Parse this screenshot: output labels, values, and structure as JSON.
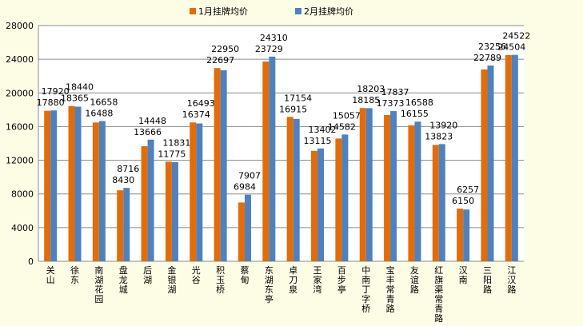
{
  "chart_data": {
    "type": "bar",
    "categories": [
      "关山",
      "徐东",
      "南湖花园",
      "盘龙城",
      "后湖",
      "金银湖",
      "光谷",
      "积玉桥",
      "蔡甸",
      "东湖东亭",
      "卓刀泉",
      "王家湾",
      "百步亭",
      "中南丁字桥",
      "宝丰常青路",
      "友谊路",
      "红旗渠常青路",
      "汉南",
      "三阳路",
      "江汉路"
    ],
    "series": [
      {
        "name": "1月挂牌均价",
        "color": "#e36c0a",
        "values": [
          17880,
          18440,
          16488,
          8430,
          13666,
          11831,
          16493,
          22950,
          6984,
          23729,
          17154,
          13115,
          14582,
          18203,
          17373,
          16155,
          13823,
          6257,
          22789,
          24504
        ]
      },
      {
        "name": "2月挂牌均价",
        "color": "#4f81bd",
        "values": [
          17920,
          18365,
          16658,
          8716,
          14448,
          11775,
          16374,
          22697,
          7907,
          24310,
          16915,
          13402,
          15057,
          18185,
          17837,
          16588,
          13920,
          6150,
          23256,
          24522
        ]
      }
    ],
    "ylim": [
      0,
      28000
    ],
    "yticks": [
      0,
      4000,
      8000,
      12000,
      16000,
      20000,
      24000,
      28000
    ],
    "grid": true,
    "legend_position": "top"
  }
}
